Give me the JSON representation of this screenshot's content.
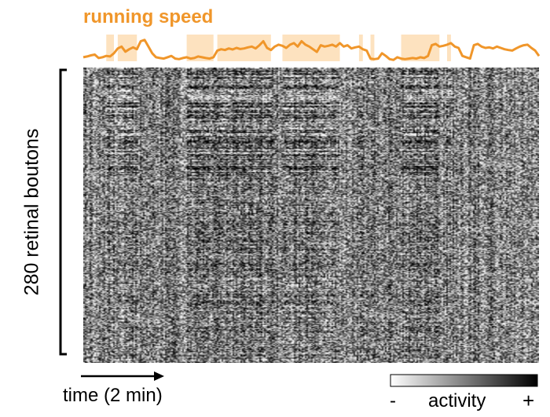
{
  "colors": {
    "accent": "#f0962a",
    "band": "#fde2bf",
    "axis": "#000000"
  },
  "chart_data": [
    {
      "type": "line",
      "title": "running speed",
      "x": [
        0,
        1,
        2,
        3,
        4,
        5,
        6,
        7,
        8,
        9,
        10,
        11,
        12,
        13,
        14,
        15,
        16,
        17,
        18,
        19,
        20,
        21,
        22,
        23,
        24,
        25,
        26,
        27,
        28,
        29,
        30,
        31,
        32,
        33,
        34,
        35,
        36,
        37,
        38,
        39,
        40,
        41,
        42,
        43,
        44,
        45,
        46,
        47,
        48,
        49,
        50,
        51,
        52,
        53,
        54,
        55,
        56,
        57,
        58,
        59,
        60,
        61,
        62,
        63,
        64,
        65,
        66,
        67,
        68,
        69,
        70,
        71,
        72,
        73,
        74,
        75,
        76,
        77,
        78,
        79,
        80,
        81,
        82,
        83,
        84,
        85,
        86,
        87,
        88,
        89,
        90,
        91,
        92,
        93,
        94,
        95,
        96,
        97,
        98,
        99,
        100,
        101,
        102,
        103,
        104,
        105,
        106,
        107,
        108,
        109,
        110,
        111,
        112,
        113,
        114,
        115,
        116,
        117,
        118,
        119
      ],
      "values": [
        0.15,
        0.18,
        0.22,
        0.25,
        0.12,
        0.15,
        0.2,
        0.18,
        0.3,
        0.48,
        0.55,
        0.36,
        0.45,
        0.52,
        0.45,
        0.75,
        0.8,
        0.55,
        0.3,
        0.15,
        0.12,
        0.1,
        0.15,
        0.2,
        0.1,
        0.08,
        0.12,
        0.15,
        0.1,
        0.12,
        0.18,
        0.15,
        0.12,
        0.1,
        0.15,
        0.4,
        0.45,
        0.42,
        0.48,
        0.44,
        0.5,
        0.46,
        0.48,
        0.52,
        0.55,
        0.48,
        0.6,
        0.75,
        0.5,
        0.42,
        0.55,
        0.62,
        0.58,
        0.5,
        0.62,
        0.68,
        0.55,
        0.75,
        0.62,
        0.55,
        0.45,
        0.35,
        0.6,
        0.55,
        0.58,
        0.62,
        0.55,
        0.68,
        0.55,
        0.6,
        0.48,
        0.52,
        0.55,
        0.45,
        0.4,
        0.1,
        0.08,
        0.1,
        0.3,
        0.2,
        0.08,
        0.05,
        0.15,
        0.1,
        0.08,
        0.1,
        0.12,
        0.1,
        0.15,
        0.12,
        0.2,
        0.6,
        0.65,
        0.55,
        0.58,
        0.62,
        0.68,
        0.55,
        0.5,
        0.2,
        0.15,
        0.1,
        0.6,
        0.65,
        0.55,
        0.5,
        0.52,
        0.48,
        0.55,
        0.5,
        0.45,
        0.42,
        0.4,
        0.48,
        0.55,
        0.6,
        0.62,
        0.5,
        0.4,
        0.2
      ],
      "running_periods": [
        [
          6,
          8
        ],
        [
          9,
          14
        ],
        [
          27,
          34
        ],
        [
          35,
          49
        ],
        [
          52,
          67
        ],
        [
          72,
          73
        ],
        [
          75,
          76
        ],
        [
          83,
          93
        ],
        [
          95,
          96
        ]
      ],
      "xlim": [
        0,
        119
      ],
      "ylim": [
        0,
        1
      ],
      "xlabel": "",
      "ylabel": "",
      "grid": false
    },
    {
      "type": "heatmap",
      "rows": 280,
      "ylabel": "280 retinal boutons",
      "xlabel": "time (2 min)",
      "colorbar": {
        "label": "activity",
        "min_label": "-",
        "max_label": "+",
        "min_color": "#ffffff",
        "max_color": "#000000"
      },
      "grid": false
    }
  ]
}
